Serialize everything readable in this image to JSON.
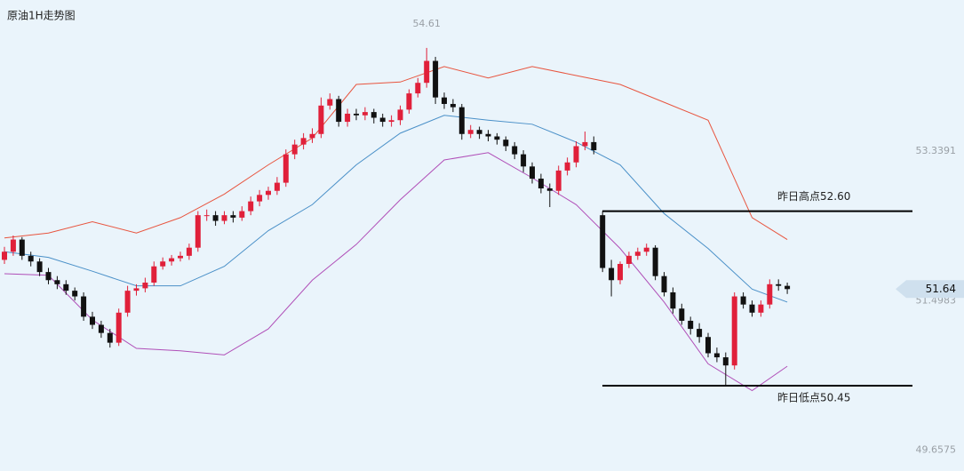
{
  "chart_data": {
    "type": "candlestick",
    "title": "原油1H走势图",
    "ylim": [
      49.4,
      55.2
    ],
    "yticks": [
      53.3391,
      51.4983,
      49.6575
    ],
    "up_color": "#e0203a",
    "down_color": "#111111",
    "ohlc": [
      [
        52.0,
        52.16,
        51.95,
        52.1
      ],
      [
        52.1,
        52.3,
        52.05,
        52.25
      ],
      [
        52.25,
        52.28,
        52.0,
        52.05
      ],
      [
        52.05,
        52.1,
        51.92,
        51.98
      ],
      [
        51.98,
        52.02,
        51.8,
        51.85
      ],
      [
        51.85,
        51.9,
        51.7,
        51.75
      ],
      [
        51.75,
        51.8,
        51.64,
        51.7
      ],
      [
        51.7,
        51.75,
        51.57,
        51.62
      ],
      [
        51.62,
        51.66,
        51.5,
        51.55
      ],
      [
        51.55,
        51.6,
        51.25,
        51.3
      ],
      [
        51.3,
        51.36,
        51.15,
        51.2
      ],
      [
        51.2,
        51.25,
        51.04,
        51.1
      ],
      [
        51.1,
        51.15,
        50.92,
        50.98
      ],
      [
        50.98,
        51.4,
        50.94,
        51.35
      ],
      [
        51.35,
        51.68,
        51.3,
        51.62
      ],
      [
        51.62,
        51.7,
        51.56,
        51.65
      ],
      [
        51.65,
        51.78,
        51.6,
        51.72
      ],
      [
        51.72,
        51.98,
        51.68,
        51.92
      ],
      [
        51.92,
        52.03,
        51.88,
        51.98
      ],
      [
        51.98,
        52.06,
        51.93,
        52.02
      ],
      [
        52.02,
        52.1,
        51.98,
        52.05
      ],
      [
        52.05,
        52.2,
        52.0,
        52.15
      ],
      [
        52.15,
        52.6,
        52.1,
        52.55
      ],
      [
        52.55,
        52.62,
        52.48,
        52.55
      ],
      [
        52.55,
        52.6,
        52.42,
        52.48
      ],
      [
        52.48,
        52.6,
        52.44,
        52.55
      ],
      [
        52.55,
        52.6,
        52.46,
        52.52
      ],
      [
        52.52,
        52.66,
        52.48,
        52.6
      ],
      [
        52.6,
        52.78,
        52.55,
        52.72
      ],
      [
        52.72,
        52.86,
        52.66,
        52.8
      ],
      [
        52.8,
        52.9,
        52.74,
        52.85
      ],
      [
        52.85,
        53.02,
        52.8,
        52.95
      ],
      [
        52.95,
        53.36,
        52.9,
        53.3
      ],
      [
        53.3,
        53.48,
        53.24,
        53.42
      ],
      [
        53.42,
        53.56,
        53.36,
        53.5
      ],
      [
        53.5,
        53.62,
        53.44,
        53.55
      ],
      [
        53.55,
        54.0,
        53.5,
        53.9
      ],
      [
        53.9,
        54.05,
        53.85,
        53.98
      ],
      [
        53.98,
        54.02,
        53.64,
        53.7
      ],
      [
        53.7,
        53.86,
        53.64,
        53.8
      ],
      [
        53.8,
        53.86,
        53.72,
        53.78
      ],
      [
        53.78,
        53.88,
        53.72,
        53.82
      ],
      [
        53.82,
        53.86,
        53.68,
        53.75
      ],
      [
        53.75,
        53.8,
        53.64,
        53.7
      ],
      [
        53.7,
        53.78,
        53.64,
        53.72
      ],
      [
        53.72,
        53.9,
        53.66,
        53.85
      ],
      [
        53.85,
        54.1,
        53.8,
        54.05
      ],
      [
        54.05,
        54.24,
        54.0,
        54.18
      ],
      [
        54.18,
        54.61,
        54.12,
        54.45
      ],
      [
        54.45,
        54.5,
        53.92,
        54.0
      ],
      [
        54.0,
        54.06,
        53.86,
        53.92
      ],
      [
        53.92,
        53.98,
        53.82,
        53.88
      ],
      [
        53.88,
        53.92,
        53.48,
        53.55
      ],
      [
        53.55,
        53.66,
        53.5,
        53.6
      ],
      [
        53.6,
        53.64,
        53.49,
        53.55
      ],
      [
        53.55,
        53.6,
        53.46,
        53.52
      ],
      [
        53.52,
        53.56,
        53.42,
        53.48
      ],
      [
        53.48,
        53.52,
        53.34,
        53.4
      ],
      [
        53.4,
        53.45,
        53.24,
        53.3
      ],
      [
        53.3,
        53.35,
        53.08,
        53.15
      ],
      [
        53.15,
        53.2,
        52.94,
        53.0
      ],
      [
        53.0,
        53.06,
        52.82,
        52.88
      ],
      [
        52.88,
        52.94,
        52.65,
        52.85
      ],
      [
        52.85,
        53.16,
        52.8,
        53.1
      ],
      [
        53.1,
        53.26,
        53.04,
        53.2
      ],
      [
        53.2,
        53.46,
        53.14,
        53.4
      ],
      [
        53.4,
        53.58,
        53.35,
        53.45
      ],
      [
        53.45,
        53.52,
        53.3,
        53.35
      ],
      [
        52.55,
        52.6,
        51.85,
        51.9
      ],
      [
        51.9,
        52.0,
        51.55,
        51.75
      ],
      [
        51.75,
        51.98,
        51.7,
        51.95
      ],
      [
        51.95,
        52.1,
        51.9,
        52.05
      ],
      [
        52.05,
        52.15,
        52.0,
        52.1
      ],
      [
        52.1,
        52.2,
        52.05,
        52.15
      ],
      [
        52.15,
        52.18,
        51.75,
        51.8
      ],
      [
        51.8,
        51.85,
        51.55,
        51.6
      ],
      [
        51.6,
        51.66,
        51.34,
        51.4
      ],
      [
        51.4,
        51.46,
        51.2,
        51.25
      ],
      [
        51.25,
        51.3,
        51.08,
        51.15
      ],
      [
        51.15,
        51.22,
        50.98,
        51.05
      ],
      [
        51.05,
        51.1,
        50.8,
        50.85
      ],
      [
        50.85,
        50.92,
        50.74,
        50.8
      ],
      [
        50.8,
        50.86,
        50.45,
        50.7
      ],
      [
        50.7,
        51.6,
        50.65,
        51.55
      ],
      [
        51.55,
        51.6,
        51.4,
        51.45
      ],
      [
        51.45,
        51.5,
        51.3,
        51.35
      ],
      [
        51.35,
        51.5,
        51.3,
        51.45
      ],
      [
        51.45,
        51.76,
        51.4,
        51.7
      ],
      [
        51.7,
        51.76,
        51.62,
        51.68
      ],
      [
        51.68,
        51.72,
        51.58,
        51.64
      ]
    ],
    "bands": {
      "x": [
        0,
        5,
        10,
        15,
        20,
        25,
        30,
        35,
        40,
        45,
        50,
        55,
        60,
        65,
        70,
        75,
        80,
        85,
        89
      ],
      "upper": [
        52.27,
        52.33,
        52.47,
        52.33,
        52.52,
        52.81,
        53.17,
        53.5,
        54.16,
        54.19,
        54.38,
        54.24,
        54.38,
        54.27,
        54.16,
        53.94,
        53.72,
        52.52,
        52.25
      ],
      "middle": [
        52.1,
        52.03,
        51.86,
        51.68,
        51.68,
        51.92,
        52.36,
        52.68,
        53.17,
        53.56,
        53.78,
        53.72,
        53.67,
        53.45,
        53.17,
        52.57,
        52.14,
        51.64,
        51.48
      ],
      "lower": [
        51.83,
        51.81,
        51.26,
        50.91,
        50.88,
        50.83,
        51.15,
        51.75,
        52.19,
        52.74,
        53.23,
        53.32,
        53.01,
        52.68,
        52.14,
        51.48,
        50.72,
        50.39,
        50.69
      ],
      "colors": {
        "upper": "#e8553f",
        "middle": "#4a90c8",
        "lower": "#b04fb8"
      }
    },
    "levels": [
      {
        "label": "昨日高点52.60",
        "value": 52.6
      },
      {
        "label": "昨日低点50.45",
        "value": 50.45
      }
    ]
  }
}
